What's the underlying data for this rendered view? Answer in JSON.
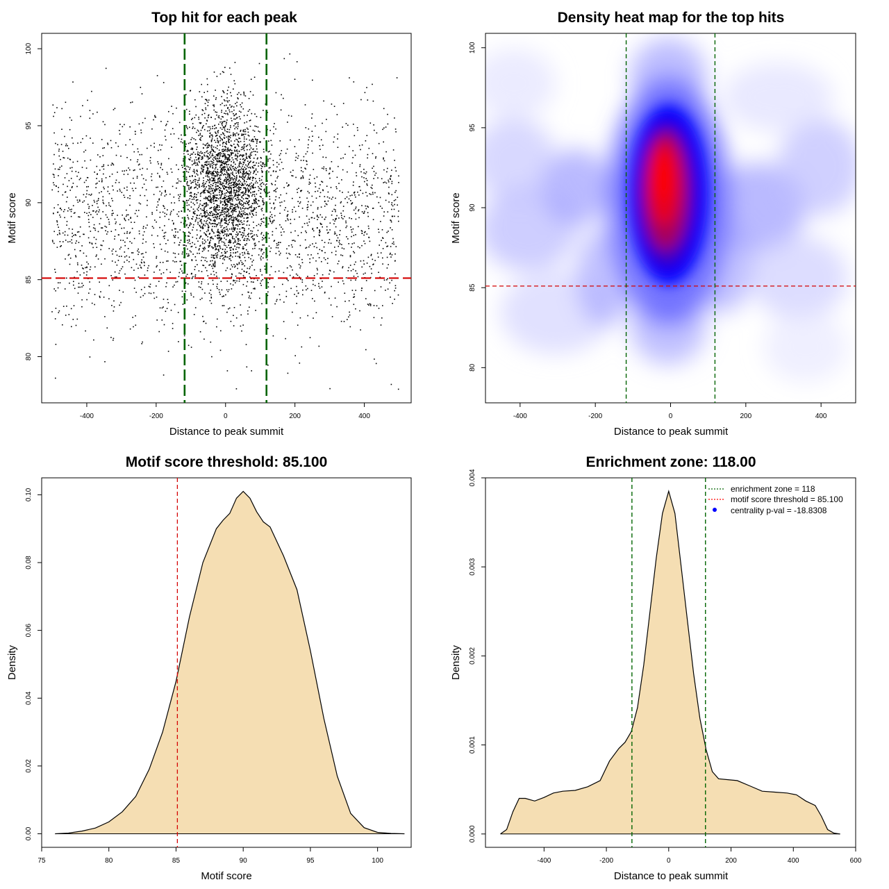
{
  "chart_data": [
    {
      "id": "scatter",
      "type": "scatter",
      "title": "Top hit for each peak",
      "xlabel": "Distance to peak summit",
      "ylabel": "Motif score",
      "xlim": [
        -530,
        535
      ],
      "ylim": [
        77,
        101
      ],
      "xticks": [
        -400,
        -200,
        0,
        200,
        400
      ],
      "yticks": [
        80,
        85,
        90,
        95,
        100
      ],
      "vlines": [
        -118,
        118
      ],
      "hline": 85.1,
      "points_description": "about 5000 motif hits; dense central cluster near distance 0, motif score 84-98; sparse background between -500 and 500"
    },
    {
      "id": "heatmap",
      "type": "heatmap",
      "title": "Density heat map for the top hits",
      "xlabel": "Distance to peak summit",
      "ylabel": "Motif score",
      "xlim": [
        -492,
        492
      ],
      "ylim": [
        77.8,
        100.9
      ],
      "xticks": [
        -400,
        -200,
        0,
        200,
        400
      ],
      "yticks": [
        80,
        85,
        90,
        95,
        100
      ],
      "vlines": [
        -118,
        118
      ],
      "hline": 85.1,
      "hot_spot": {
        "x": -10,
        "y": 91
      }
    },
    {
      "id": "score-density",
      "type": "area",
      "title": "Motif score threshold: 85.100",
      "xlabel": "Motif score",
      "ylabel": "Density",
      "xlim": [
        75,
        102.5
      ],
      "ylim": [
        -0.004,
        0.105
      ],
      "xticks": [
        75,
        80,
        85,
        90,
        95,
        100
      ],
      "yticks": [
        0,
        0.02,
        0.04,
        0.06,
        0.08,
        0.1
      ],
      "ytick_labels": [
        "0.00",
        "0.02",
        "0.04",
        "0.06",
        "0.08",
        "0.10"
      ],
      "vline": 85.1,
      "x": [
        76,
        77,
        78,
        79,
        80,
        81,
        82,
        83,
        84,
        85,
        86,
        87,
        88,
        88.5,
        89,
        89.5,
        90,
        90.5,
        91,
        91.5,
        92,
        93,
        94,
        95,
        96,
        97,
        98,
        99,
        100,
        101,
        102
      ],
      "y": [
        0,
        0.0002,
        0.0008,
        0.0017,
        0.0035,
        0.0065,
        0.011,
        0.019,
        0.03,
        0.045,
        0.064,
        0.08,
        0.09,
        0.0925,
        0.0945,
        0.099,
        0.101,
        0.099,
        0.095,
        0.092,
        0.0905,
        0.082,
        0.072,
        0.054,
        0.034,
        0.017,
        0.006,
        0.0018,
        0.0004,
        0.0001,
        0
      ]
    },
    {
      "id": "distance-density",
      "type": "area",
      "title": "Enrichment zone: 118.00",
      "xlabel": "Distance to peak summit",
      "ylabel": "Density",
      "xlim": [
        -588,
        600
      ],
      "ylim": [
        -0.00015,
        0.004
      ],
      "xticks": [
        -400,
        -200,
        0,
        200,
        400,
        600
      ],
      "yticks": [
        0,
        0.001,
        0.002,
        0.003,
        0.004
      ],
      "ytick_labels": [
        "0.000",
        "0.001",
        "0.002",
        "0.003",
        "0.004"
      ],
      "vlines": [
        -118,
        118
      ],
      "x": [
        -540,
        -520,
        -500,
        -480,
        -460,
        -430,
        -400,
        -370,
        -340,
        -300,
        -260,
        -220,
        -190,
        -160,
        -140,
        -120,
        -100,
        -80,
        -60,
        -40,
        -20,
        0,
        20,
        40,
        60,
        80,
        100,
        120,
        140,
        160,
        190,
        220,
        260,
        300,
        340,
        380,
        410,
        440,
        470,
        490,
        510,
        530,
        550
      ],
      "y": [
        0,
        5e-05,
        0.00025,
        0.0004,
        0.0004,
        0.00037,
        0.00041,
        0.00046,
        0.00048,
        0.00049,
        0.00053,
        0.0006,
        0.00082,
        0.00096,
        0.00103,
        0.00115,
        0.00142,
        0.0019,
        0.0025,
        0.0031,
        0.0036,
        0.00385,
        0.0036,
        0.003,
        0.0024,
        0.0018,
        0.0013,
        0.00095,
        0.0007,
        0.00062,
        0.00061,
        0.0006,
        0.00054,
        0.00048,
        0.00047,
        0.00046,
        0.00044,
        0.00037,
        0.00032,
        0.0002,
        5e-05,
        1e-05,
        0
      ]
    }
  ],
  "legend": {
    "items": [
      {
        "label": "enrichment zone = 118",
        "color": "#006400",
        "symbol": "line"
      },
      {
        "label": "motif score threshold = 85.100",
        "color": "#ff0000",
        "symbol": "line"
      },
      {
        "label": "centrality p-val = -18.8308",
        "color": "#0000ff",
        "symbol": "dot"
      }
    ]
  },
  "colors": {
    "threshold": "#d40000",
    "zone": "#006400",
    "density_fill": "#f5deb3",
    "density_line": "#000000",
    "points": "#000000",
    "heat_low": "#ffffff",
    "heat_mid": "#0000ff",
    "heat_high": "#ff0000"
  }
}
